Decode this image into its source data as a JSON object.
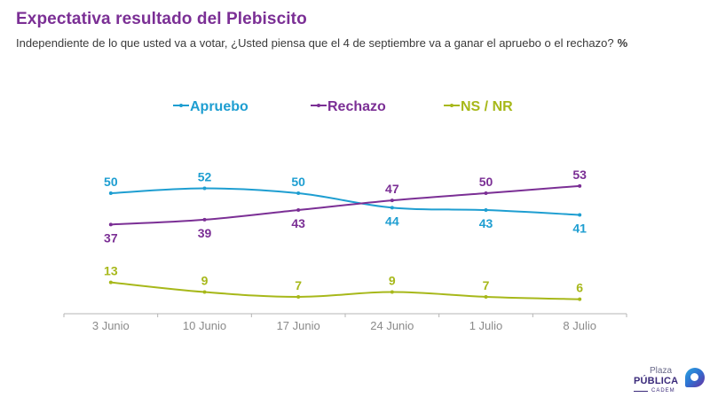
{
  "header": {
    "title": "Expectativa resultado del Plebiscito",
    "subtitle": "Independiente de lo que usted va a votar, ¿Usted piensa que el 4 de septiembre va a ganar el apruebo o el rechazo?",
    "unit": "%"
  },
  "logo": {
    "line1": "Plaza",
    "line2": "PÚBLICA",
    "line3": "CADEM"
  },
  "chart_data": {
    "type": "line",
    "title": "Expectativa resultado del Plebiscito",
    "xlabel": "",
    "ylabel": "%",
    "categories": [
      "3 Junio",
      "10 Junio",
      "17 Junio",
      "24 Junio",
      "1 Julio",
      "8 Julio"
    ],
    "ylim": [
      0,
      60
    ],
    "grid": false,
    "legend_position": "top-center",
    "series": [
      {
        "name": "Apruebo",
        "color": "#1e9ed1",
        "values": [
          50,
          52,
          50,
          44,
          43,
          41
        ],
        "label_pos": [
          "above",
          "above",
          "above",
          "below",
          "below",
          "below"
        ]
      },
      {
        "name": "Rechazo",
        "color": "#7b2f95",
        "values": [
          37,
          39,
          43,
          47,
          50,
          53
        ],
        "label_pos": [
          "below",
          "below",
          "below",
          "above",
          "above",
          "above"
        ]
      },
      {
        "name": "NS / NR",
        "color": "#a7b81a",
        "values": [
          13,
          9,
          7,
          9,
          7,
          6
        ],
        "label_pos": [
          "above",
          "above",
          "above",
          "above",
          "above",
          "above"
        ]
      }
    ]
  }
}
